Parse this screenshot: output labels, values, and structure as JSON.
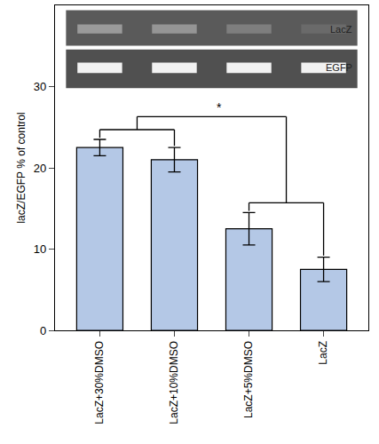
{
  "chart_data": {
    "type": "bar",
    "categories": [
      "LacZ+30%DMSO",
      "LacZ+10%DMSO",
      "LacZ+5%DMSO",
      "LacZ"
    ],
    "values": [
      22.5,
      21,
      12.5,
      7.5
    ],
    "errors": [
      1,
      1.5,
      2,
      1.5
    ],
    "color": "#b4c8e6",
    "y_label": "lacZ/EGFP % of control",
    "ylim": [
      0,
      40
    ],
    "yticks": [
      0,
      10,
      20,
      30
    ],
    "grid": false,
    "gel_labels": [
      "LacZ",
      "EGFP"
    ],
    "annotations": [
      {
        "text": "*"
      }
    ]
  }
}
